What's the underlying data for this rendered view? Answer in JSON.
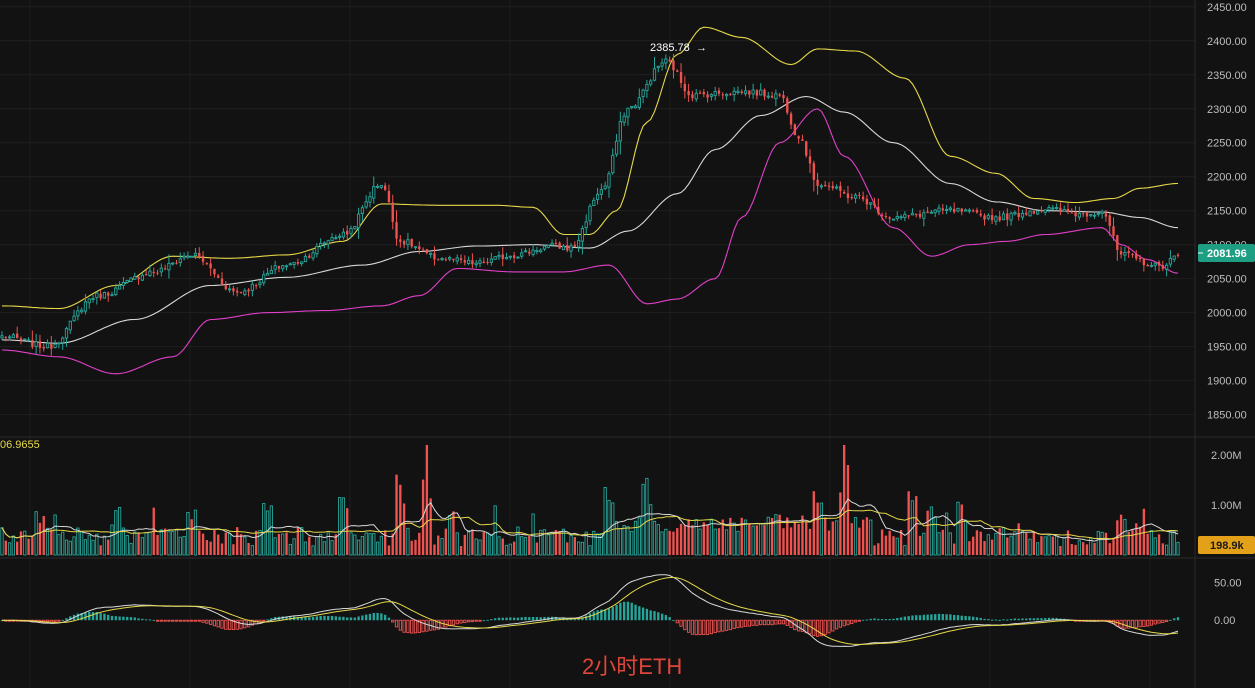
{
  "chart_title": "2小时ETH",
  "colors": {
    "background": "#121212",
    "up": "#26a69a",
    "down": "#ef5350",
    "bb_upper": "#e6d84a",
    "bb_middle": "#d8d8d8",
    "bb_lower": "#e040c8",
    "grid": "#1f1f1f",
    "axis_text": "#bdbdbd",
    "price_pill": "#1e9e83",
    "volume_pill": "#e3a11a"
  },
  "chart_data": [
    {
      "type": "candlestick",
      "panel": "price",
      "ylim": [
        1820,
        2460
      ],
      "y_ticks": [
        "2450.00",
        "2400.00",
        "2350.00",
        "2300.00",
        "2250.00",
        "2200.00",
        "2150.00",
        "2100.00",
        "2050.00",
        "2000.00",
        "1950.00",
        "1900.00",
        "1850.00"
      ],
      "last_price_label": "2081.96",
      "peak_annotation": "2385.78",
      "close_anchors": [
        [
          0,
          1965
        ],
        [
          12,
          1950
        ],
        [
          25,
          2025
        ],
        [
          40,
          2060
        ],
        [
          50,
          2085
        ],
        [
          62,
          2030
        ],
        [
          75,
          2070
        ],
        [
          90,
          2115
        ],
        [
          100,
          2190
        ],
        [
          105,
          2105
        ],
        [
          115,
          2080
        ],
        [
          125,
          2072
        ],
        [
          135,
          2085
        ],
        [
          145,
          2098
        ],
        [
          150,
          2095
        ],
        [
          158,
          2180
        ],
        [
          165,
          2300
        ],
        [
          175,
          2370
        ],
        [
          182,
          2320
        ],
        [
          195,
          2325
        ],
        [
          205,
          2320
        ],
        [
          210,
          2260
        ],
        [
          215,
          2190
        ],
        [
          225,
          2170
        ],
        [
          235,
          2140
        ],
        [
          250,
          2150
        ],
        [
          262,
          2140
        ],
        [
          275,
          2152
        ],
        [
          285,
          2145
        ],
        [
          290,
          2150
        ],
        [
          295,
          2085
        ],
        [
          305,
          2068
        ],
        [
          310,
          2082
        ]
      ],
      "bollinger_upper_anchors": [
        [
          0,
          2010
        ],
        [
          15,
          2006
        ],
        [
          30,
          2040
        ],
        [
          45,
          2083
        ],
        [
          60,
          2080
        ],
        [
          75,
          2085
        ],
        [
          90,
          2105
        ],
        [
          100,
          2160
        ],
        [
          115,
          2158
        ],
        [
          130,
          2158
        ],
        [
          140,
          2155
        ],
        [
          148,
          2115
        ],
        [
          155,
          2115
        ],
        [
          162,
          2150
        ],
        [
          170,
          2280
        ],
        [
          178,
          2380
        ],
        [
          185,
          2420
        ],
        [
          195,
          2405
        ],
        [
          208,
          2365
        ],
        [
          215,
          2388
        ],
        [
          225,
          2385
        ],
        [
          238,
          2345
        ],
        [
          250,
          2230
        ],
        [
          262,
          2205
        ],
        [
          272,
          2168
        ],
        [
          283,
          2162
        ],
        [
          293,
          2168
        ],
        [
          300,
          2183
        ],
        [
          310,
          2190
        ]
      ],
      "bollinger_middle_anchors": [
        [
          0,
          1960
        ],
        [
          15,
          1955
        ],
        [
          35,
          1990
        ],
        [
          55,
          2040
        ],
        [
          75,
          2052
        ],
        [
          95,
          2070
        ],
        [
          110,
          2090
        ],
        [
          125,
          2098
        ],
        [
          140,
          2100
        ],
        [
          155,
          2095
        ],
        [
          165,
          2120
        ],
        [
          178,
          2175
        ],
        [
          188,
          2240
        ],
        [
          200,
          2290
        ],
        [
          212,
          2318
        ],
        [
          222,
          2295
        ],
        [
          235,
          2250
        ],
        [
          250,
          2190
        ],
        [
          262,
          2163
        ],
        [
          275,
          2150
        ],
        [
          290,
          2148
        ],
        [
          300,
          2140
        ],
        [
          310,
          2125
        ]
      ],
      "bollinger_lower_anchors": [
        [
          0,
          1945
        ],
        [
          15,
          1935
        ],
        [
          30,
          1910
        ],
        [
          45,
          1935
        ],
        [
          55,
          1990
        ],
        [
          70,
          2000
        ],
        [
          85,
          2003
        ],
        [
          100,
          2010
        ],
        [
          110,
          2025
        ],
        [
          120,
          2065
        ],
        [
          135,
          2060
        ],
        [
          148,
          2060
        ],
        [
          160,
          2070
        ],
        [
          170,
          2013
        ],
        [
          178,
          2020
        ],
        [
          188,
          2050
        ],
        [
          195,
          2140
        ],
        [
          205,
          2250
        ],
        [
          215,
          2300
        ],
        [
          222,
          2230
        ],
        [
          235,
          2125
        ],
        [
          245,
          2083
        ],
        [
          255,
          2100
        ],
        [
          265,
          2105
        ],
        [
          275,
          2115
        ],
        [
          290,
          2125
        ],
        [
          295,
          2100
        ],
        [
          302,
          2078
        ],
        [
          310,
          2058
        ]
      ]
    },
    {
      "type": "bar",
      "panel": "volume",
      "ylim": [
        0,
        2300000
      ],
      "y_ticks": [
        "2.00M",
        "1.00M"
      ],
      "current_volume_label": "198.9k",
      "indicator_value_label": "06.9655",
      "ma_fast_color": "#e6d84a",
      "ma_slow_color": "#d8d8d8"
    },
    {
      "type": "bar",
      "panel": "macd",
      "ylim": [
        -90,
        80
      ],
      "y_ticks": [
        "50.00",
        "0.00"
      ],
      "signal_color": "#e6d84a",
      "macd_color": "#d8d8d8"
    }
  ]
}
